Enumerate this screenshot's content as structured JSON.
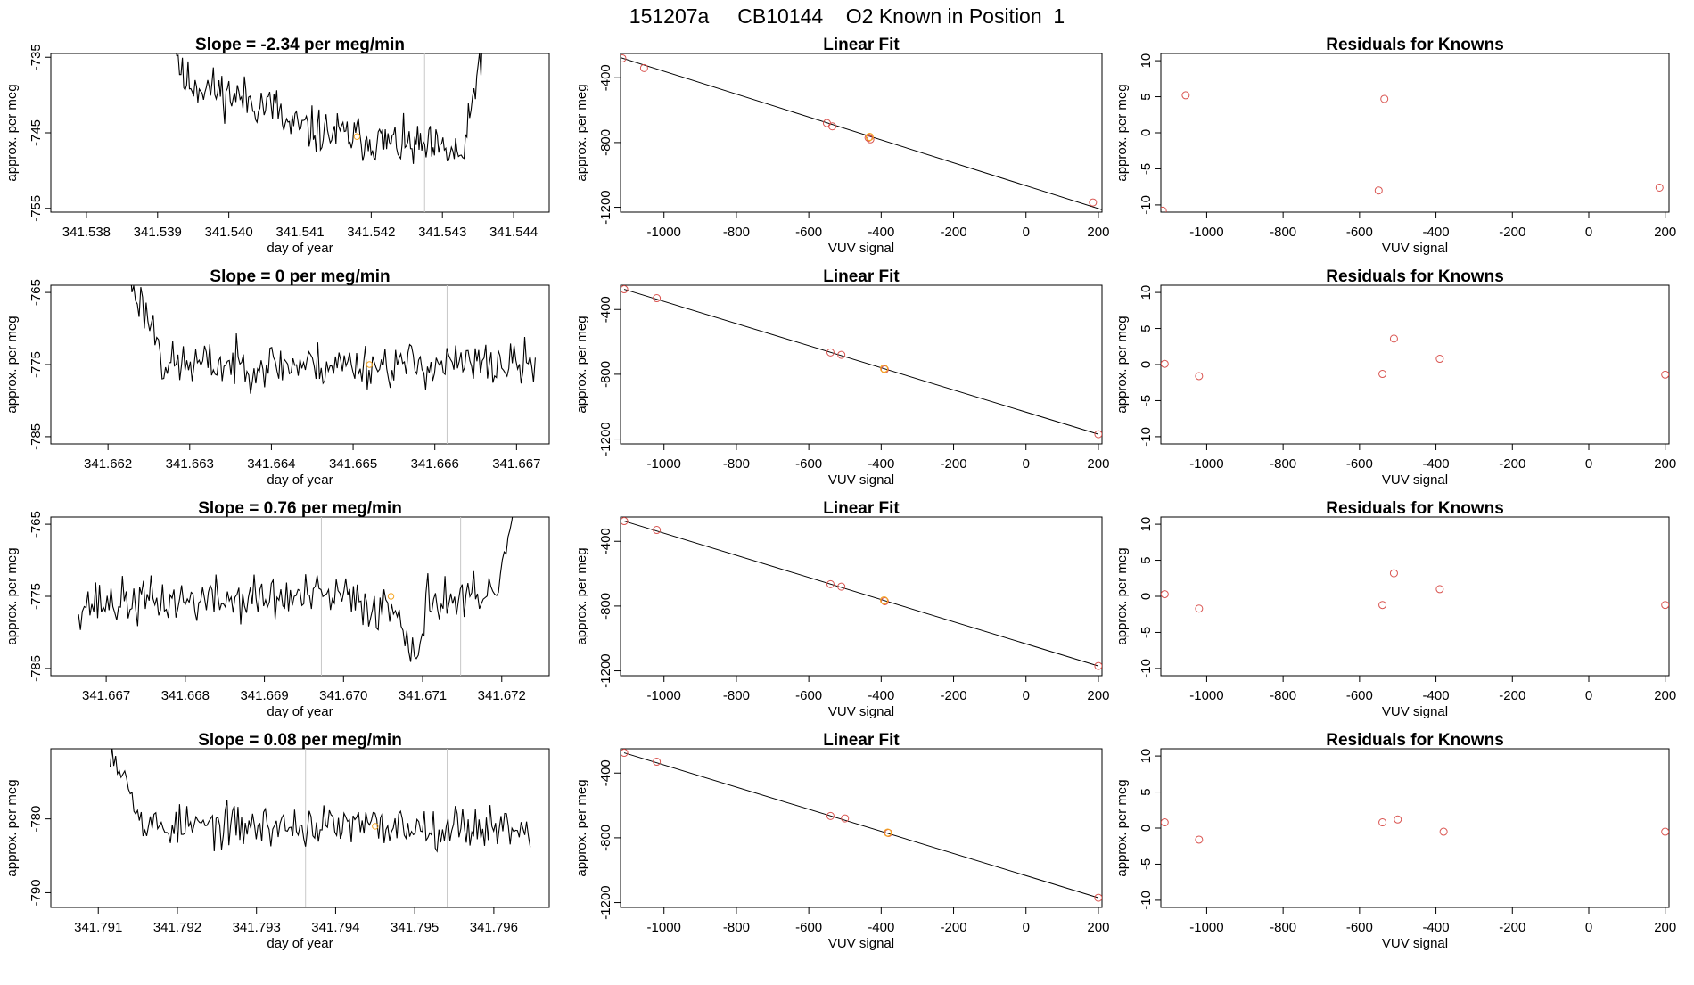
{
  "page_title": "151207a     CB10144    O2 Known in Position  1",
  "colors": {
    "line": "#000000",
    "fit_point": "#d9534f",
    "current_point": "#f5a623",
    "vline": "#c8c8c8",
    "frame": "#000000"
  },
  "chart_data": [
    {
      "row": 0,
      "kind": "timeseries",
      "type": "line",
      "title": "Slope =  -2.34  per meg/min",
      "xlabel": "day of year",
      "ylabel": "approx. per meg",
      "xlim": [
        341.5375,
        341.5445
      ],
      "ylim": [
        -755.5,
        -734.5
      ],
      "xticks": [
        "341.538",
        "341.539",
        "341.540",
        "341.541",
        "341.542",
        "341.543",
        "341.544"
      ],
      "yticks": [
        -735,
        -745,
        -755
      ],
      "vlines": [
        341.541,
        341.54275
      ],
      "x_start": 341.53915,
      "x_end": 341.5437,
      "seed": 11,
      "segments": [
        {
          "from": 0.0,
          "to": 0.04,
          "start": -728,
          "end": -737
        },
        {
          "from": 0.04,
          "to": 0.35,
          "start": -738,
          "end": -742
        },
        {
          "from": 0.35,
          "to": 0.92,
          "start": -744,
          "end": -748
        },
        {
          "from": 0.92,
          "to": 1.0,
          "start": -746,
          "end": -725
        }
      ],
      "noise": 2.2,
      "marker": {
        "x": 341.5418,
        "y": -745.5
      }
    },
    {
      "row": 0,
      "kind": "fit",
      "type": "scatter",
      "title": "Linear Fit",
      "xlabel": "VUV signal",
      "ylabel": "approx. per meg",
      "xlim": [
        -1120,
        210
      ],
      "ylim": [
        -1230,
        -250
      ],
      "xticks": [
        -1000,
        -800,
        -600,
        -400,
        -200,
        0,
        200
      ],
      "yticks": [
        -400,
        -800,
        -1200
      ],
      "line": {
        "x": [
          -1120,
          210
        ],
        "y": [
          -275,
          -1215
        ]
      },
      "points": [
        {
          "x": -1115,
          "y": -280
        },
        {
          "x": -1055,
          "y": -340
        },
        {
          "x": -550,
          "y": -680
        },
        {
          "x": -535,
          "y": -700
        },
        {
          "x": -435,
          "y": -770
        },
        {
          "x": -430,
          "y": -780
        },
        {
          "x": 185,
          "y": -1170
        }
      ],
      "current": {
        "x": -432,
        "y": -765
      }
    },
    {
      "row": 0,
      "kind": "residuals",
      "type": "scatter",
      "title": "Residuals for Knowns",
      "xlabel": "VUV signal",
      "ylabel": "approx. per meg",
      "xlim": [
        -1120,
        210
      ],
      "ylim": [
        -11,
        11
      ],
      "xticks": [
        -1000,
        -800,
        -600,
        -400,
        -200,
        0,
        200
      ],
      "yticks": [
        10,
        5,
        0,
        -5,
        -10
      ],
      "points": [
        {
          "x": -1115,
          "y": -10.8
        },
        {
          "x": -1055,
          "y": 5.2
        },
        {
          "x": -550,
          "y": -8.0
        },
        {
          "x": -535,
          "y": 4.7
        },
        {
          "x": 185,
          "y": -7.6
        }
      ]
    },
    {
      "row": 1,
      "kind": "timeseries",
      "type": "line",
      "title": "Slope =  0  per meg/min",
      "xlabel": "day of year",
      "ylabel": "approx. per meg",
      "xlim": [
        341.6613,
        341.6674
      ],
      "ylim": [
        -786,
        -764
      ],
      "xticks": [
        "341.662",
        "341.663",
        "341.664",
        "341.665",
        "341.666",
        "341.667"
      ],
      "yticks": [
        -765,
        -775,
        -785
      ],
      "vlines": [
        341.66435,
        341.66615
      ],
      "x_start": 341.66225,
      "x_end": 341.66723,
      "seed": 23,
      "segments": [
        {
          "from": 0.0,
          "to": 0.08,
          "start": -763,
          "end": -772
        },
        {
          "from": 0.08,
          "to": 1.0,
          "start": -775,
          "end": -775
        }
      ],
      "noise": 2.3,
      "marker": {
        "x": 341.6652,
        "y": -775
      }
    },
    {
      "row": 1,
      "kind": "fit",
      "type": "scatter",
      "title": "Linear Fit",
      "xlabel": "VUV signal",
      "ylabel": "approx. per meg",
      "xlim": [
        -1120,
        210
      ],
      "ylim": [
        -1230,
        -250
      ],
      "xticks": [
        -1000,
        -800,
        -600,
        -400,
        -200,
        0,
        200
      ],
      "yticks": [
        -400,
        -800,
        -1200
      ],
      "line": {
        "x": [
          -1110,
          200
        ],
        "y": [
          -275,
          -1170
        ]
      },
      "points": [
        {
          "x": -1110,
          "y": -275
        },
        {
          "x": -1020,
          "y": -330
        },
        {
          "x": -540,
          "y": -665
        },
        {
          "x": -510,
          "y": -680
        },
        {
          "x": -390,
          "y": -770
        },
        {
          "x": 200,
          "y": -1170
        }
      ],
      "current": {
        "x": -392,
        "y": -765
      }
    },
    {
      "row": 1,
      "kind": "residuals",
      "type": "scatter",
      "title": "Residuals for Knowns",
      "xlabel": "VUV signal",
      "ylabel": "approx. per meg",
      "xlim": [
        -1120,
        210
      ],
      "ylim": [
        -11,
        11
      ],
      "xticks": [
        -1000,
        -800,
        -600,
        -400,
        -200,
        0,
        200
      ],
      "yticks": [
        10,
        5,
        0,
        -5,
        -10
      ],
      "points": [
        {
          "x": -1110,
          "y": 0.1
        },
        {
          "x": -1020,
          "y": -1.6
        },
        {
          "x": -540,
          "y": -1.3
        },
        {
          "x": -510,
          "y": 3.6
        },
        {
          "x": -390,
          "y": 0.8
        },
        {
          "x": 200,
          "y": -1.4
        }
      ]
    },
    {
      "row": 2,
      "kind": "timeseries",
      "type": "line",
      "title": "Slope =  0.76  per meg/min",
      "xlabel": "day of year",
      "ylabel": "approx. per meg",
      "xlim": [
        341.6663,
        341.6726
      ],
      "ylim": [
        -786,
        -764
      ],
      "xticks": [
        "341.667",
        "341.668",
        "341.669",
        "341.670",
        "341.671",
        "341.672"
      ],
      "yticks": [
        -765,
        -775,
        -785
      ],
      "vlines": [
        341.66972,
        341.67148
      ],
      "x_start": 341.66665,
      "x_end": 341.6722,
      "seed": 37,
      "segments": [
        {
          "from": 0.0,
          "to": 0.62,
          "start": -776,
          "end": -775
        },
        {
          "from": 0.62,
          "to": 0.74,
          "start": -776,
          "end": -777
        },
        {
          "from": 0.74,
          "to": 0.79,
          "start": -780,
          "end": -783
        },
        {
          "from": 0.79,
          "to": 0.95,
          "start": -775,
          "end": -776
        },
        {
          "from": 0.95,
          "to": 1.0,
          "start": -774,
          "end": -762
        }
      ],
      "noise": 2.4,
      "marker": {
        "x": 341.6706,
        "y": -775
      }
    },
    {
      "row": 2,
      "kind": "fit",
      "type": "scatter",
      "title": "Linear Fit",
      "xlabel": "VUV signal",
      "ylabel": "approx. per meg",
      "xlim": [
        -1120,
        210
      ],
      "ylim": [
        -1230,
        -250
      ],
      "xticks": [
        -1000,
        -800,
        -600,
        -400,
        -200,
        0,
        200
      ],
      "yticks": [
        -400,
        -800,
        -1200
      ],
      "line": {
        "x": [
          -1110,
          200
        ],
        "y": [
          -275,
          -1170
        ]
      },
      "points": [
        {
          "x": -1110,
          "y": -275
        },
        {
          "x": -1020,
          "y": -330
        },
        {
          "x": -540,
          "y": -665
        },
        {
          "x": -510,
          "y": -680
        },
        {
          "x": -390,
          "y": -770
        },
        {
          "x": 200,
          "y": -1170
        }
      ],
      "current": {
        "x": -392,
        "y": -765
      }
    },
    {
      "row": 2,
      "kind": "residuals",
      "type": "scatter",
      "title": "Residuals for Knowns",
      "xlabel": "VUV signal",
      "ylabel": "approx. per meg",
      "xlim": [
        -1120,
        210
      ],
      "ylim": [
        -11,
        11
      ],
      "xticks": [
        -1000,
        -800,
        -600,
        -400,
        -200,
        0,
        200
      ],
      "yticks": [
        10,
        5,
        0,
        -5,
        -10
      ],
      "points": [
        {
          "x": -1110,
          "y": 0.3
        },
        {
          "x": -1020,
          "y": -1.7
        },
        {
          "x": -540,
          "y": -1.2
        },
        {
          "x": -510,
          "y": 3.2
        },
        {
          "x": -390,
          "y": 1.0
        },
        {
          "x": 200,
          "y": -1.2
        }
      ]
    },
    {
      "row": 3,
      "kind": "timeseries",
      "type": "line",
      "title": "Slope =  0.08  per meg/min",
      "xlabel": "day of year",
      "ylabel": "approx. per meg",
      "xlim": [
        341.7904,
        341.7967
      ],
      "ylim": [
        -792,
        -770.5
      ],
      "xticks": [
        "341.791",
        "341.792",
        "341.793",
        "341.794",
        "341.795",
        "341.796"
      ],
      "yticks": [
        -780,
        -790
      ],
      "vlines": [
        341.79362,
        341.79541
      ],
      "x_start": 341.79115,
      "x_end": 341.79646,
      "seed": 53,
      "segments": [
        {
          "from": 0.0,
          "to": 0.07,
          "start": -770,
          "end": -778
        },
        {
          "from": 0.07,
          "to": 1.0,
          "start": -781,
          "end": -781
        }
      ],
      "noise": 2.1,
      "marker": {
        "x": 341.7945,
        "y": -781
      }
    },
    {
      "row": 3,
      "kind": "fit",
      "type": "scatter",
      "title": "Linear Fit",
      "xlabel": "VUV signal",
      "ylabel": "approx. per meg",
      "xlim": [
        -1120,
        210
      ],
      "ylim": [
        -1230,
        -250
      ],
      "xticks": [
        -1000,
        -800,
        -600,
        -400,
        -200,
        0,
        200
      ],
      "yticks": [
        -400,
        -800,
        -1200
      ],
      "line": {
        "x": [
          -1110,
          200
        ],
        "y": [
          -275,
          -1170
        ]
      },
      "points": [
        {
          "x": -1110,
          "y": -275
        },
        {
          "x": -1020,
          "y": -330
        },
        {
          "x": -540,
          "y": -665
        },
        {
          "x": -500,
          "y": -680
        },
        {
          "x": -380,
          "y": -770
        },
        {
          "x": 200,
          "y": -1170
        }
      ],
      "current": {
        "x": -382,
        "y": -768
      }
    },
    {
      "row": 3,
      "kind": "residuals",
      "type": "scatter",
      "title": "Residuals for Knowns",
      "xlabel": "VUV signal",
      "ylabel": "approx. per meg",
      "xlim": [
        -1120,
        210
      ],
      "ylim": [
        -11,
        11
      ],
      "xticks": [
        -1000,
        -800,
        -600,
        -400,
        -200,
        0,
        200
      ],
      "yticks": [
        10,
        5,
        0,
        -5,
        -10
      ],
      "points": [
        {
          "x": -1110,
          "y": 0.8
        },
        {
          "x": -1020,
          "y": -1.6
        },
        {
          "x": -540,
          "y": 0.8
        },
        {
          "x": -500,
          "y": 1.2
        },
        {
          "x": -380,
          "y": -0.5
        },
        {
          "x": 200,
          "y": -0.5
        }
      ]
    }
  ]
}
